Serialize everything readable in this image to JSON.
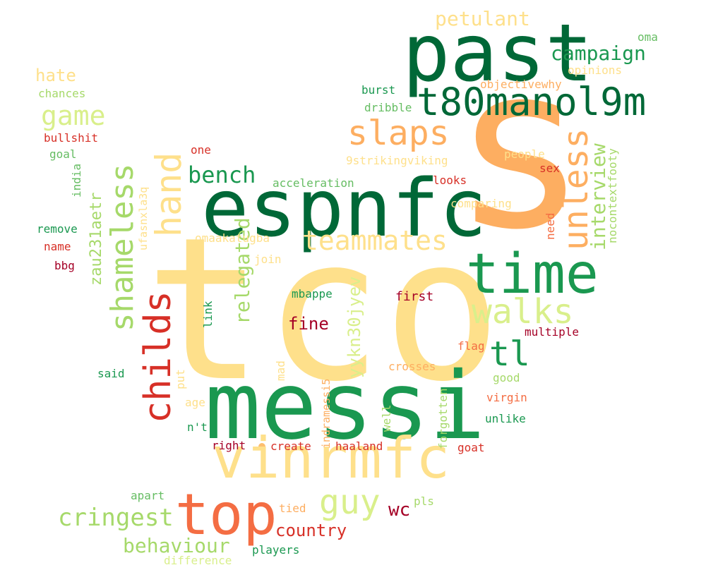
{
  "colors": {
    "dark_green": "#006837",
    "green": "#1a9850",
    "light_green": "#66bd63",
    "pale_green": "#a6d96a",
    "yellow_green": "#d9ef8b",
    "pale_yellow": "#fee08b",
    "orange": "#fdae61",
    "dark_orange": "#f46d43",
    "red": "#d73027",
    "dark_red": "#a50026"
  },
  "words": [
    {
      "text": "tco"
    },
    {
      "text": "s"
    },
    {
      "text": "messi"
    },
    {
      "text": "past"
    },
    {
      "text": "espnfc"
    },
    {
      "text": "vinrmfc"
    },
    {
      "text": "top"
    },
    {
      "text": "time"
    },
    {
      "text": "t80manol9m"
    },
    {
      "text": "slaps"
    },
    {
      "text": "teammates"
    },
    {
      "text": "shameless"
    },
    {
      "text": "childs"
    },
    {
      "text": "hand"
    },
    {
      "text": "unless"
    },
    {
      "text": "walks"
    },
    {
      "text": "guy"
    },
    {
      "text": "tl"
    },
    {
      "text": "game"
    },
    {
      "text": "cringest"
    },
    {
      "text": "behaviour"
    },
    {
      "text": "bench"
    },
    {
      "text": "interview"
    },
    {
      "text": "relegated"
    },
    {
      "text": "campaign"
    },
    {
      "text": "petulant"
    },
    {
      "text": "yykn30jyev"
    },
    {
      "text": "zau231aetr"
    },
    {
      "text": "country"
    },
    {
      "text": "hate"
    },
    {
      "text": "fine"
    },
    {
      "text": "wc"
    },
    {
      "text": "oma"
    },
    {
      "text": "opinions"
    },
    {
      "text": "objectivewhy"
    },
    {
      "text": "burst"
    },
    {
      "text": "dribble"
    },
    {
      "text": "chances"
    },
    {
      "text": "bullshit"
    },
    {
      "text": "goal"
    },
    {
      "text": "one"
    },
    {
      "text": "india"
    },
    {
      "text": "ufasnxla3q"
    },
    {
      "text": "9strikingviking"
    },
    {
      "text": "people"
    },
    {
      "text": "acceleration"
    },
    {
      "text": "looks"
    },
    {
      "text": "sex"
    },
    {
      "text": "comparing"
    },
    {
      "text": "nocontextfooty"
    },
    {
      "text": "remove"
    },
    {
      "text": "name"
    },
    {
      "text": "bbg"
    },
    {
      "text": "omaakatugba"
    },
    {
      "text": "join"
    },
    {
      "text": "need"
    },
    {
      "text": "mbappe"
    },
    {
      "text": "first"
    },
    {
      "text": "link"
    },
    {
      "text": "multiple"
    },
    {
      "text": "flag"
    },
    {
      "text": "said"
    },
    {
      "text": "mad"
    },
    {
      "text": "put"
    },
    {
      "text": "crosses"
    },
    {
      "text": "good"
    },
    {
      "text": "indramessi5"
    },
    {
      "text": "virgin"
    },
    {
      "text": "age"
    },
    {
      "text": "well"
    },
    {
      "text": "forgotten"
    },
    {
      "text": "unlike"
    },
    {
      "text": "n't"
    },
    {
      "text": "right"
    },
    {
      "text": "create"
    },
    {
      "text": "haaland"
    },
    {
      "text": "goat"
    },
    {
      "text": "apart"
    },
    {
      "text": "tied"
    },
    {
      "text": "pls"
    },
    {
      "text": "players"
    },
    {
      "text": "difference"
    }
  ]
}
